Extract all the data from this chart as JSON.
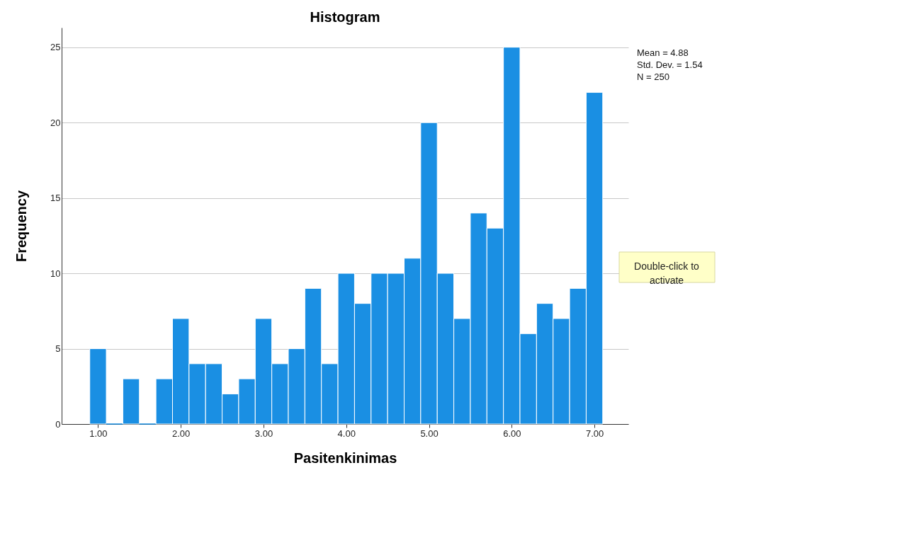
{
  "chart_data": {
    "type": "histogram",
    "title": "Histogram",
    "xlabel": "Pasitenkinimas",
    "ylabel": "Frequency",
    "bins": [
      0.9,
      1.1,
      1.3,
      1.5,
      1.7,
      1.9,
      2.1,
      2.3,
      2.5,
      2.7,
      2.9,
      3.1,
      3.3,
      3.5,
      3.7,
      3.9,
      4.1,
      4.3,
      4.5,
      4.7,
      4.9,
      5.1,
      5.3,
      5.5,
      5.7,
      5.9,
      6.1,
      6.3,
      6.5,
      6.7,
      6.9,
      7.1
    ],
    "values": [
      5,
      0,
      3,
      0,
      3,
      7,
      4,
      4,
      2,
      3,
      7,
      4,
      5,
      9,
      4,
      10,
      8,
      10,
      10,
      11,
      20,
      10,
      7,
      14,
      13,
      25,
      6,
      8,
      7,
      9,
      22
    ],
    "color": "#1a8fe3",
    "xlim": [
      0.56,
      7.41
    ],
    "xticks": [
      {
        "value": 1,
        "label": "1.00"
      },
      {
        "value": 2,
        "label": "2.00"
      },
      {
        "value": 3,
        "label": "3.00"
      },
      {
        "value": 4,
        "label": "4.00"
      },
      {
        "value": 5,
        "label": "5.00"
      },
      {
        "value": 6,
        "label": "6.00"
      },
      {
        "value": 7,
        "label": "7.00"
      }
    ],
    "ylim": [
      0,
      26.3
    ],
    "yticks": [
      0,
      5,
      10,
      15,
      20,
      25
    ],
    "grid": "y",
    "annotations": [
      "Mean = 4.88",
      "Std. Dev. = 1.54",
      "N = 250",
      "Double-click to\nactivate"
    ]
  }
}
